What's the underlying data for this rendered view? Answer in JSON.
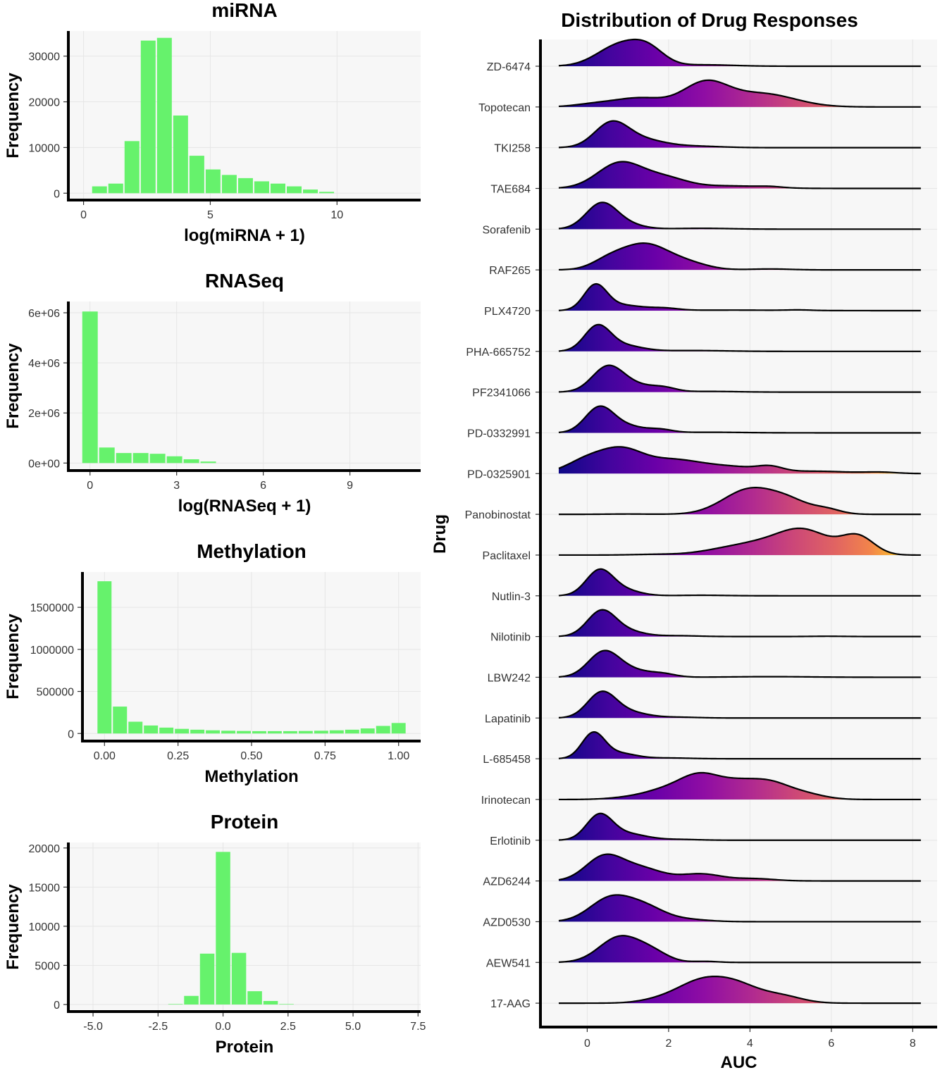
{
  "chart_data": [
    {
      "type": "bar",
      "id": "mirna",
      "title": "miRNA",
      "xlabel": "log(miRNA + 1)",
      "ylabel": "Frequency",
      "xlim": [
        -0.6,
        13.3
      ],
      "ylim": [
        -1500,
        35500
      ],
      "xticks": [
        0,
        5,
        10
      ],
      "xtick_labels": [
        "0",
        "5",
        "10"
      ],
      "yticks": [
        0,
        10000,
        20000,
        30000
      ],
      "ytick_labels": [
        "0",
        "10000",
        "20000",
        "30000"
      ],
      "binwidth": 0.64,
      "x": [
        0.63,
        1.27,
        1.91,
        2.55,
        3.19,
        3.83,
        4.47,
        5.11,
        5.75,
        6.39,
        7.03,
        7.67,
        8.31,
        8.95,
        9.59,
        10.23,
        10.87,
        11.51,
        12.15
      ],
      "values": [
        1500,
        2100,
        11400,
        33400,
        34000,
        17000,
        8200,
        5200,
        4000,
        3300,
        2600,
        2100,
        1500,
        800,
        300,
        0,
        0,
        0,
        0
      ]
    },
    {
      "type": "bar",
      "id": "rnaseq",
      "title": "RNASeq",
      "xlabel": "log(RNASeq + 1)",
      "ylabel": "Frequency",
      "xlim": [
        -0.75,
        11.45
      ],
      "ylim": [
        -300000,
        6450000
      ],
      "xticks": [
        0,
        3,
        6,
        9
      ],
      "xtick_labels": [
        "0",
        "3",
        "6",
        "9"
      ],
      "yticks": [
        0,
        2000000,
        4000000,
        6000000
      ],
      "ytick_labels": [
        "0e+00",
        "2e+06",
        "4e+06",
        "6e+06"
      ],
      "binwidth": 0.585,
      "x": [
        0,
        0.585,
        1.17,
        1.755,
        2.34,
        2.925,
        3.51,
        4.095,
        4.68,
        5.265,
        5.85,
        6.435,
        7.02,
        7.605,
        8.19,
        8.775,
        9.36,
        9.945,
        10.53
      ],
      "values": [
        6050000,
        620000,
        400000,
        400000,
        370000,
        270000,
        150000,
        60000,
        0,
        0,
        0,
        0,
        0,
        0,
        0,
        0,
        0,
        0,
        0
      ]
    },
    {
      "type": "bar",
      "id": "methylation",
      "title": "Methylation",
      "xlabel": "Methylation",
      "ylabel": "Frequency",
      "xlim": [
        -0.075,
        1.075
      ],
      "ylim": [
        -90000,
        1920000
      ],
      "xticks": [
        0.0,
        0.25,
        0.5,
        0.75,
        1.0
      ],
      "xtick_labels": [
        "0.00",
        "0.25",
        "0.50",
        "0.75",
        "1.00"
      ],
      "yticks": [
        0,
        500000,
        1000000,
        1500000
      ],
      "ytick_labels": [
        "0",
        "500000",
        "1000000",
        "1500000"
      ],
      "binwidth": 0.0526,
      "x": [
        0.0,
        0.0526,
        0.1053,
        0.1579,
        0.2105,
        0.2632,
        0.3158,
        0.3684,
        0.4211,
        0.4737,
        0.5263,
        0.5789,
        0.6316,
        0.6842,
        0.7368,
        0.7895,
        0.8421,
        0.8947,
        0.9474,
        1.0
      ],
      "values": [
        1810000,
        320000,
        140000,
        95000,
        70000,
        55000,
        45000,
        38000,
        33000,
        30000,
        28000,
        28000,
        28000,
        30000,
        33000,
        38000,
        45000,
        60000,
        90000,
        125000
      ]
    },
    {
      "type": "bar",
      "id": "protein",
      "title": "Protein",
      "xlabel": "Protein",
      "ylabel": "Frequency",
      "xlim": [
        -5.95,
        7.6
      ],
      "ylim": [
        -900,
        20700
      ],
      "xticks": [
        -5.0,
        -2.5,
        0.0,
        2.5,
        5.0,
        7.5
      ],
      "xtick_labels": [
        "-5.0",
        "-2.5",
        "0.0",
        "2.5",
        "5.0",
        "7.5"
      ],
      "yticks": [
        0,
        5000,
        10000,
        15000,
        20000
      ],
      "ytick_labels": [
        "0",
        "5000",
        "10000",
        "15000",
        "20000"
      ],
      "binwidth": 0.61,
      "x": [
        -1.83,
        -1.22,
        -0.61,
        0.0,
        0.61,
        1.22,
        1.83,
        2.44
      ],
      "values": [
        60,
        1100,
        6500,
        19500,
        6600,
        1700,
        450,
        60
      ]
    },
    {
      "type": "ridgeline",
      "id": "drug-responses",
      "title": "Distribution of Drug Responses",
      "xlabel": "AUC",
      "ylabel": "Drug",
      "xlim": [
        -1.15,
        8.6
      ],
      "xticks": [
        0,
        2,
        4,
        6,
        8
      ],
      "xtick_labels": [
        "0",
        "2",
        "4",
        "6",
        "8"
      ],
      "fill_scale": "plasma",
      "fill_max_auc": 7.8,
      "line_x_range": [
        -0.7,
        8.2
      ],
      "drugs": [
        {
          "name": "ZD-6474",
          "peaks": [
            [
              0.8,
              0.55,
              0.75
            ],
            [
              1.5,
              0.4,
              0.5
            ],
            [
              2.9,
              0.7,
              0.05
            ]
          ]
        },
        {
          "name": "Topotecan",
          "peaks": [
            [
              1.3,
              0.6,
              0.12
            ],
            [
              2.9,
              0.55,
              0.32
            ],
            [
              4.3,
              0.8,
              0.18
            ],
            [
              0.2,
              0.5,
              0.04
            ]
          ]
        },
        {
          "name": "TKI258",
          "peaks": [
            [
              0.6,
              0.42,
              0.72
            ],
            [
              1.4,
              0.5,
              0.2
            ],
            [
              2.5,
              0.7,
              0.05
            ]
          ]
        },
        {
          "name": "TAE684",
          "peaks": [
            [
              0.8,
              0.55,
              0.5
            ],
            [
              1.9,
              0.55,
              0.2
            ],
            [
              3.5,
              0.8,
              0.05
            ],
            [
              4.5,
              0.3,
              0.02
            ]
          ]
        },
        {
          "name": "Sorafenib",
          "peaks": [
            [
              0.35,
              0.38,
              0.88
            ],
            [
              1.0,
              0.4,
              0.14
            ],
            [
              2.8,
              0.7,
              0.03
            ]
          ]
        },
        {
          "name": "RAF265",
          "peaks": [
            [
              1.4,
              0.6,
              0.55
            ],
            [
              0.5,
              0.4,
              0.15
            ],
            [
              2.5,
              0.5,
              0.12
            ],
            [
              4.5,
              0.5,
              0.02
            ]
          ]
        },
        {
          "name": "PLX4720",
          "peaks": [
            [
              0.2,
              0.28,
              0.9
            ],
            [
              0.85,
              0.5,
              0.2
            ],
            [
              1.9,
              0.35,
              0.08
            ],
            [
              3.6,
              1.2,
              0.02
            ],
            [
              5.2,
              0.3,
              0.02
            ]
          ]
        },
        {
          "name": "PHA-665752",
          "peaks": [
            [
              0.25,
              0.32,
              0.88
            ],
            [
              0.9,
              0.45,
              0.2
            ],
            [
              2.6,
              0.8,
              0.03
            ]
          ]
        },
        {
          "name": "PF2341066",
          "peaks": [
            [
              0.5,
              0.38,
              0.7
            ],
            [
              1.2,
              0.45,
              0.18
            ],
            [
              1.9,
              0.3,
              0.1
            ],
            [
              3.0,
              0.7,
              0.02
            ]
          ]
        },
        {
          "name": "PD-0332991",
          "peaks": [
            [
              0.3,
              0.35,
              0.82
            ],
            [
              1.0,
              0.4,
              0.2
            ],
            [
              1.8,
              0.3,
              0.1
            ],
            [
              3.0,
              0.8,
              0.02
            ]
          ]
        },
        {
          "name": "PD-0325901",
          "peaks": [
            [
              0.0,
              0.5,
              0.2
            ],
            [
              0.85,
              0.5,
              0.3
            ],
            [
              2.0,
              0.7,
              0.18
            ],
            [
              3.5,
              0.9,
              0.1
            ],
            [
              4.5,
              0.3,
              0.06
            ],
            [
              5.8,
              0.7,
              0.03
            ],
            [
              7.2,
              0.4,
              0.02
            ]
          ]
        },
        {
          "name": "Panobinostat",
          "peaks": [
            [
              4.0,
              0.65,
              0.85
            ],
            [
              5.0,
              0.5,
              0.35
            ],
            [
              5.9,
              0.35,
              0.15
            ],
            [
              1.0,
              0.5,
              0.01
            ]
          ]
        },
        {
          "name": "Paclitaxel",
          "peaks": [
            [
              5.3,
              0.65,
              0.62
            ],
            [
              6.65,
              0.4,
              0.45
            ],
            [
              4.0,
              0.7,
              0.25
            ],
            [
              1.8,
              0.6,
              0.02
            ],
            [
              3.0,
              0.5,
              0.04
            ]
          ]
        },
        {
          "name": "Nutlin-3",
          "peaks": [
            [
              0.3,
              0.33,
              0.92
            ],
            [
              0.9,
              0.4,
              0.2
            ],
            [
              2.8,
              0.6,
              0.02
            ]
          ]
        },
        {
          "name": "Nilotinib",
          "peaks": [
            [
              0.35,
              0.35,
              0.88
            ],
            [
              1.0,
              0.4,
              0.17
            ],
            [
              2.2,
              0.5,
              0.03
            ],
            [
              5.9,
              0.4,
              0.01
            ]
          ]
        },
        {
          "name": "LBW242",
          "peaks": [
            [
              0.4,
              0.38,
              0.8
            ],
            [
              1.1,
              0.5,
              0.22
            ],
            [
              1.9,
              0.3,
              0.08
            ],
            [
              4.5,
              1.0,
              0.02
            ]
          ]
        },
        {
          "name": "Lapatinib",
          "peaks": [
            [
              0.35,
              0.35,
              0.85
            ],
            [
              1.0,
              0.45,
              0.2
            ],
            [
              2.2,
              0.5,
              0.03
            ]
          ]
        },
        {
          "name": "L-685458",
          "peaks": [
            [
              0.15,
              0.28,
              0.95
            ],
            [
              0.8,
              0.4,
              0.2
            ],
            [
              2.0,
              0.5,
              0.03
            ]
          ]
        },
        {
          "name": "Irinotecan",
          "peaks": [
            [
              2.8,
              0.55,
              0.45
            ],
            [
              4.4,
              0.5,
              0.3
            ],
            [
              1.8,
              0.5,
              0.12
            ],
            [
              3.7,
              0.4,
              0.15
            ],
            [
              5.3,
              0.5,
              0.1
            ],
            [
              1.0,
              0.5,
              0.03
            ]
          ]
        },
        {
          "name": "Erlotinib",
          "peaks": [
            [
              0.3,
              0.32,
              0.88
            ],
            [
              1.0,
              0.45,
              0.22
            ],
            [
              2.2,
              0.5,
              0.03
            ]
          ]
        },
        {
          "name": "AZD6244",
          "peaks": [
            [
              0.4,
              0.45,
              0.4
            ],
            [
              1.3,
              0.55,
              0.22
            ],
            [
              2.8,
              0.5,
              0.12
            ],
            [
              4.1,
              0.5,
              0.04
            ]
          ]
        },
        {
          "name": "AZD0530",
          "peaks": [
            [
              0.55,
              0.5,
              0.55
            ],
            [
              1.4,
              0.5,
              0.35
            ],
            [
              2.5,
              0.5,
              0.05
            ]
          ]
        },
        {
          "name": "AEW541",
          "peaks": [
            [
              0.8,
              0.5,
              0.72
            ],
            [
              1.6,
              0.4,
              0.25
            ],
            [
              2.9,
              0.3,
              0.03
            ]
          ]
        },
        {
          "name": "17-AAG",
          "peaks": [
            [
              2.7,
              0.55,
              0.4
            ],
            [
              3.6,
              0.6,
              0.45
            ],
            [
              4.8,
              0.5,
              0.15
            ],
            [
              1.8,
              0.5,
              0.08
            ]
          ]
        }
      ]
    }
  ]
}
